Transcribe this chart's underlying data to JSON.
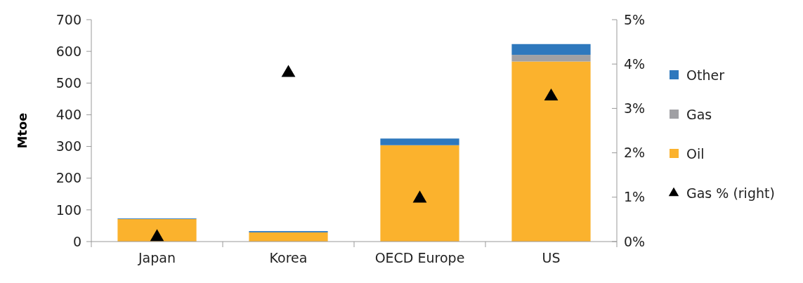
{
  "chart_data": {
    "type": "bar",
    "stacked": true,
    "categories": [
      "Japan",
      "Korea",
      "OECD Europe",
      "US"
    ],
    "series": [
      {
        "name": "Oil",
        "color": "#fbb22d",
        "values": [
          71,
          29,
          304,
          568
        ]
      },
      {
        "name": "Gas",
        "color": "#a0a0a4",
        "values": [
          0,
          0,
          0,
          21
        ]
      },
      {
        "name": "Other",
        "color": "#2e78bd",
        "values": [
          2,
          4,
          21,
          34
        ]
      },
      {
        "name": "Gas % (right)",
        "type": "scatter",
        "axis": "y2",
        "color": "#000000",
        "values": [
          0.1,
          3.8,
          0.97,
          3.27
        ]
      }
    ],
    "ylabel": "Mtoe",
    "ylim": [
      0,
      700
    ],
    "yticks": [
      0,
      100,
      200,
      300,
      400,
      500,
      600,
      700
    ],
    "y2lim": [
      0,
      5
    ],
    "y2ticks": [
      {
        "value": 0,
        "label": "0%"
      },
      {
        "value": 1,
        "label": "1%"
      },
      {
        "value": 2,
        "label": "2%"
      },
      {
        "value": 3,
        "label": "3%"
      },
      {
        "value": 4,
        "label": "4%"
      },
      {
        "value": 5,
        "label": "5%"
      }
    ],
    "marker": "triangle",
    "legend": "right",
    "grid": false
  }
}
